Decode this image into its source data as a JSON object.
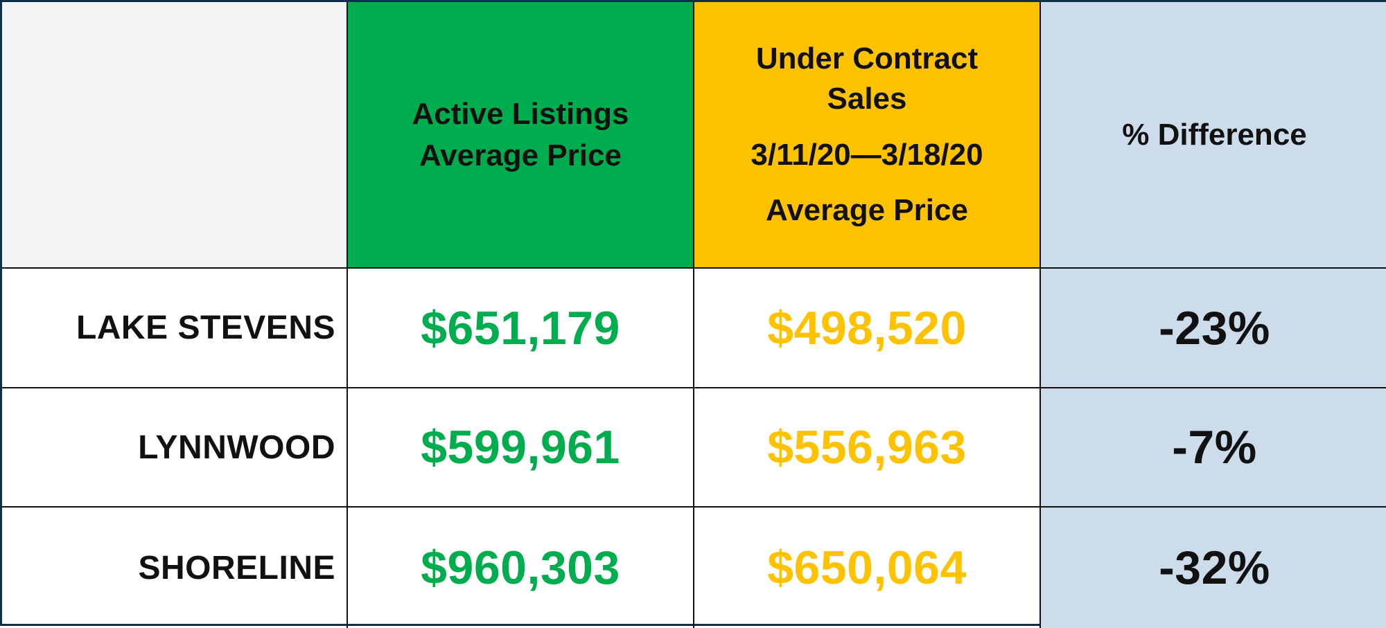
{
  "chart_data": {
    "type": "table",
    "columns": [
      {
        "key": "active",
        "header_lines": [
          "Active Listings",
          "Average Price"
        ],
        "color": "#00ad4e"
      },
      {
        "key": "contract",
        "header_lines": [
          "Under Contract",
          "Sales",
          "3/11/20—3/18/20",
          "Average Price"
        ],
        "color": "#ffc200"
      },
      {
        "key": "diff",
        "header_lines": [
          "% Difference"
        ],
        "color": "#cddceb"
      }
    ],
    "rows": [
      {
        "label": "LAKE STEVENS",
        "active_text": "$651,179",
        "contract_text": "$498,520",
        "diff_text": "-23%",
        "active_value": 651179,
        "contract_value": 498520,
        "diff_value": -23
      },
      {
        "label": "LYNNWOOD",
        "active_text": "$599,961",
        "contract_text": "$556,963",
        "diff_text": "-7%",
        "active_value": 599961,
        "contract_value": 556963,
        "diff_value": -7
      },
      {
        "label": "SHORELINE",
        "active_text": "$960,303",
        "contract_text": "$650,064",
        "diff_text": "-32%",
        "active_value": 960303,
        "contract_value": 650064,
        "diff_value": -32
      }
    ]
  }
}
